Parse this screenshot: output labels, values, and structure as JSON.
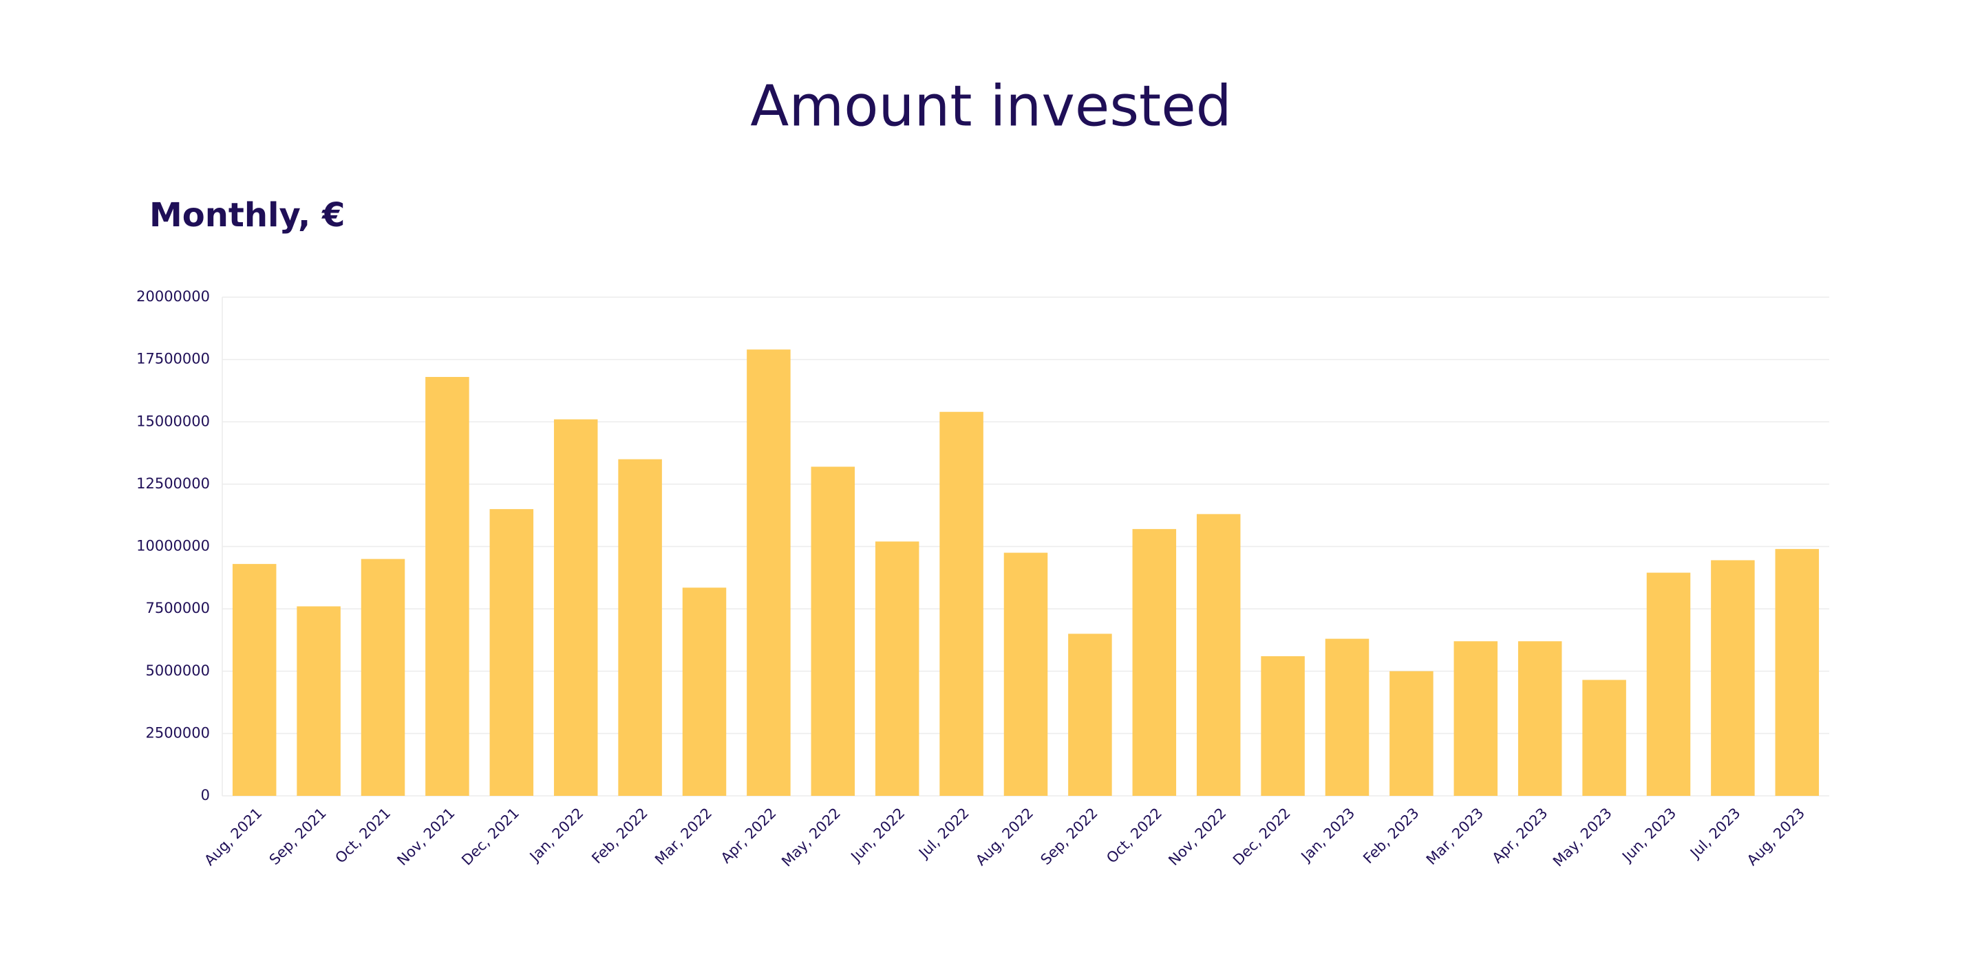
{
  "chart_data": {
    "type": "bar",
    "title": "Amount invested",
    "subtitle": "Monthly, €",
    "categories": [
      "Aug, 2021",
      "Sep, 2021",
      "Oct, 2021",
      "Nov, 2021",
      "Dec, 2021",
      "Jan, 2022",
      "Feb, 2022",
      "Mar, 2022",
      "Apr, 2022",
      "May, 2022",
      "Jun, 2022",
      "Jul, 2022",
      "Aug, 2022",
      "Sep, 2022",
      "Oct, 2022",
      "Nov, 2022",
      "Dec, 2022",
      "Jan, 2023",
      "Feb, 2023",
      "Mar, 2023",
      "Apr, 2023",
      "May, 2023",
      "Jun, 2023",
      "Jul, 2023",
      "Aug, 2023"
    ],
    "values": [
      9300000,
      7600000,
      9500000,
      16800000,
      11500000,
      15100000,
      13500000,
      8350000,
      17900000,
      13200000,
      10200000,
      15400000,
      9750000,
      6500000,
      10700000,
      11300000,
      5600000,
      6300000,
      5000000,
      6200000,
      6200000,
      4650000,
      8950000,
      9450000,
      9900000
    ],
    "color": "#fecb5b",
    "ylim": [
      0,
      20000000
    ],
    "yticks": [
      0,
      2500000,
      5000000,
      7500000,
      10000000,
      12500000,
      15000000,
      17500000,
      20000000
    ],
    "grid": true
  }
}
